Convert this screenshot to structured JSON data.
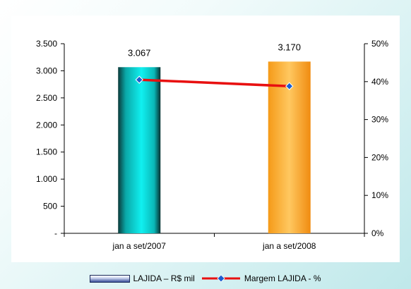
{
  "chart_data": {
    "type": "bar",
    "categories": [
      "jan a set/2007",
      "jan a set/2008"
    ],
    "series": [
      {
        "name": "LAJIDA – R$ mil",
        "type": "bar",
        "axis": "left",
        "values": [
          3067,
          3170
        ],
        "data_labels": [
          "3.067",
          "3.170"
        ],
        "colors": [
          "#0ae0e0",
          "#f7a830"
        ]
      },
      {
        "name": "Margem LAJIDA - %",
        "type": "line",
        "axis": "right",
        "values": [
          40.5,
          38.8
        ],
        "color": "#e81010",
        "marker_color": "#1a5fd0"
      }
    ],
    "y_left": {
      "ylim": [
        0,
        3500
      ],
      "ticks": [
        3500,
        3000,
        2500,
        2000,
        1500,
        1000,
        500,
        0
      ],
      "tick_labels": [
        "3.500",
        "3.000",
        "2.500",
        "2.000",
        "1.500",
        "1.000",
        "500",
        "-"
      ]
    },
    "y_right": {
      "ylim": [
        0,
        50
      ],
      "ticks": [
        50,
        40,
        30,
        20,
        10,
        0
      ],
      "tick_labels": [
        "50%",
        "40%",
        "30%",
        "20%",
        "10%",
        "0%"
      ]
    },
    "grid": false,
    "legend_position": "bottom"
  },
  "legend": {
    "bar_label": "LAJIDA – R$ mil",
    "line_label": "Margem LAJIDA - %"
  }
}
